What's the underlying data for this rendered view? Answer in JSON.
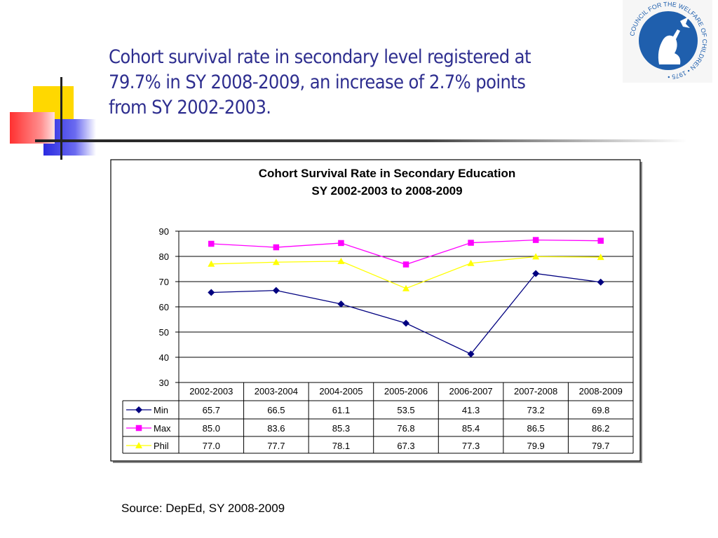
{
  "slide": {
    "title": "Cohort survival rate in secondary level registered at 79.7% in SY 2008-2009, an increase of 2.7% points from SY 2002-2003.",
    "title_lines": [
      "Cohort survival rate in secondary level registered at",
      "79.7% in SY 2008-2009, an increase of 2.7% points",
      "from SY 2002-2003."
    ],
    "source": "Source: DepEd, SY 2008-2009",
    "logo_text": "COUNCIL FOR THE WELFARE OF CHILDREN • 1975 •",
    "colors": {
      "title": "#2e2e8f",
      "logo": "#1f5fad"
    }
  },
  "chart_data": {
    "type": "line",
    "title": [
      "Cohort Survival Rate in Secondary Education",
      "SY 2002-2003 to 2008-2009"
    ],
    "categories": [
      "2002-2003",
      "2003-2004",
      "2004-2005",
      "2005-2006",
      "2006-2007",
      "2007-2008",
      "2008-2009"
    ],
    "ylim": [
      30,
      90
    ],
    "yticks": [
      30,
      40,
      50,
      60,
      70,
      80,
      90
    ],
    "grid": true,
    "legend": "data-table",
    "series": [
      {
        "name": "Min",
        "values": [
          65.7,
          66.5,
          61.1,
          53.5,
          41.3,
          73.2,
          69.8
        ],
        "labels": [
          "65.7",
          "66.5",
          "61.1",
          "53.5",
          "41.3",
          "73.2",
          "69.8"
        ],
        "color": "#000080",
        "marker": "diamond"
      },
      {
        "name": "Max",
        "values": [
          85.0,
          83.6,
          85.3,
          76.8,
          85.4,
          86.5,
          86.2
        ],
        "labels": [
          "85.0",
          "83.6",
          "85.3",
          "76.8",
          "85.4",
          "86.5",
          "86.2"
        ],
        "color": "#ff00ff",
        "marker": "square"
      },
      {
        "name": "Phil",
        "values": [
          77.0,
          77.7,
          78.1,
          67.3,
          77.3,
          79.9,
          79.7
        ],
        "labels": [
          "77.0",
          "77.7",
          "78.1",
          "67.3",
          "77.3",
          "79.9",
          "79.7"
        ],
        "color": "#ffff00",
        "marker": "triangle"
      }
    ]
  }
}
